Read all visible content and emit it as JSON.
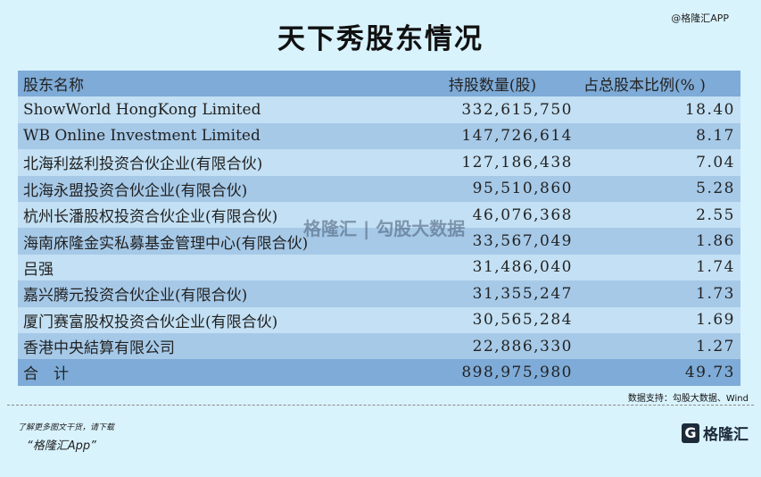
{
  "title": "天下秀股东情况",
  "brand_top": "@格隆汇APP",
  "headers": [
    "股东名称",
    "持股数量(股)",
    "占总股本比例(% )"
  ],
  "rows": [
    [
      "ShowWorld HongKong Limited",
      "332,615,750",
      "18.40"
    ],
    [
      "WB Online Investment Limited",
      "147,726,614",
      "8.17"
    ],
    [
      "北海利兹利投资合伙企业(有限合伙)",
      "127,186,438",
      "7.04"
    ],
    [
      "北海永盟投资合伙企业(有限合伙)",
      "95,510,860",
      "5.28"
    ],
    [
      "杭州长潘股权投资合伙企业(有限合伙)",
      "46,076,368",
      "2.55"
    ],
    [
      "海南庥隆金实私募基金管理中心(有限合伙)",
      "33,567,049",
      "1.86"
    ],
    [
      "吕强",
      "31,486,040",
      "1.74"
    ],
    [
      "嘉兴腾元投资合伙企业(有限合伙)",
      "31,355,247",
      "1.73"
    ],
    [
      "厦门赛富股权投资合伙企业(有限合伙)",
      "30,565,284",
      "1.69"
    ],
    [
      "香港中央結算有限公司",
      "22,886,330",
      "1.27"
    ]
  ],
  "total": [
    "合　计",
    "898,975,980",
    "49.73"
  ],
  "source": "数据支持：勾股大数据、Wind",
  "watermark": "格隆汇 | 勾股大数据",
  "promo_line1": "了解更多图文干货，请下载",
  "promo_line2": "“格隆汇App”",
  "logo_text": "格隆汇"
}
